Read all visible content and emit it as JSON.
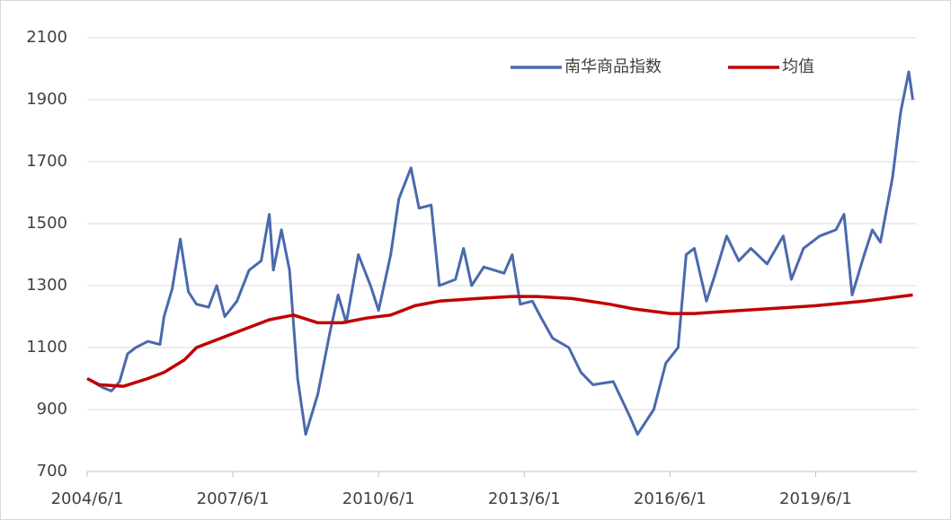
{
  "chart_data": {
    "type": "line",
    "xlim": [
      "2004/6/1",
      "2021/7/1"
    ],
    "xticks": [
      "2004/6/1",
      "2007/6/1",
      "2010/6/1",
      "2013/6/1",
      "2016/6/1",
      "2019/6/1"
    ],
    "ylim": [
      700,
      2100
    ],
    "yticks": [
      700,
      900,
      1100,
      1300,
      1500,
      1700,
      1900,
      2100
    ],
    "grid": true,
    "legend": "top-right",
    "series": [
      {
        "name": "南华商品指数",
        "color": "#4a69ad",
        "x": [
          "2004/6/1",
          "2004/8/1",
          "2004/10/1",
          "2004/12/1",
          "2005/2/1",
          "2005/4/1",
          "2005/6/1",
          "2005/9/1",
          "2005/12/1",
          "2006/1/1",
          "2006/3/1",
          "2006/5/1",
          "2006/7/1",
          "2006/9/1",
          "2006/12/1",
          "2007/2/1",
          "2007/4/1",
          "2007/7/1",
          "2007/10/1",
          "2008/1/1",
          "2008/3/1",
          "2008/4/1",
          "2008/6/1",
          "2008/8/1",
          "2008/10/1",
          "2008/12/1",
          "2009/3/1",
          "2009/6/1",
          "2009/8/1",
          "2009/10/1",
          "2010/1/1",
          "2010/4/1",
          "2010/6/1",
          "2010/9/1",
          "2010/11/1",
          "2011/2/1",
          "2011/4/1",
          "2011/7/1",
          "2011/9/1",
          "2012/1/1",
          "2012/3/1",
          "2012/5/1",
          "2012/8/1",
          "2013/1/1",
          "2013/3/1",
          "2013/5/1",
          "2013/8/1",
          "2013/10/1",
          "2014/1/1",
          "2014/5/1",
          "2014/8/1",
          "2014/11/1",
          "2015/4/1",
          "2015/8/1",
          "2015/10/1",
          "2016/2/1",
          "2016/5/1",
          "2016/8/1",
          "2016/10/1",
          "2016/12/1",
          "2017/3/1",
          "2017/5/1",
          "2017/8/1",
          "2017/11/1",
          "2018/2/1",
          "2018/6/1",
          "2018/10/1",
          "2018/12/1",
          "2019/3/1",
          "2019/7/1",
          "2019/11/1",
          "2020/1/1",
          "2020/3/1",
          "2020/6/1",
          "2020/8/1",
          "2020/10/1",
          "2021/1/1",
          "2021/3/1",
          "2021/5/1",
          "2021/6/1"
        ],
        "values": [
          1000,
          985,
          970,
          960,
          990,
          1080,
          1100,
          1120,
          1110,
          1200,
          1290,
          1450,
          1280,
          1240,
          1230,
          1300,
          1200,
          1250,
          1350,
          1380,
          1530,
          1350,
          1480,
          1350,
          1000,
          820,
          950,
          1150,
          1270,
          1180,
          1400,
          1300,
          1220,
          1400,
          1580,
          1680,
          1550,
          1560,
          1300,
          1320,
          1420,
          1300,
          1360,
          1340,
          1400,
          1240,
          1250,
          1200,
          1130,
          1100,
          1020,
          980,
          990,
          880,
          820,
          900,
          1050,
          1100,
          1400,
          1420,
          1250,
          1330,
          1460,
          1380,
          1420,
          1370,
          1460,
          1320,
          1420,
          1460,
          1480,
          1530,
          1270,
          1400,
          1480,
          1440,
          1650,
          1860,
          1990,
          1900
        ]
      },
      {
        "name": "均值",
        "color": "#c00000",
        "x": [
          "2004/6/1",
          "2004/9/1",
          "2005/3/1",
          "2005/9/1",
          "2006/1/1",
          "2006/6/1",
          "2006/9/1",
          "2007/3/1",
          "2007/9/1",
          "2008/3/1",
          "2008/9/1",
          "2009/3/1",
          "2009/9/1",
          "2010/3/1",
          "2010/9/1",
          "2011/3/1",
          "2011/9/1",
          "2012/6/1",
          "2013/3/1",
          "2013/9/1",
          "2014/6/1",
          "2015/3/1",
          "2015/9/1",
          "2016/6/1",
          "2016/12/1",
          "2017/6/1",
          "2018/6/1",
          "2019/6/1",
          "2020/6/1",
          "2021/6/1"
        ],
        "values": [
          1000,
          980,
          975,
          1000,
          1020,
          1060,
          1100,
          1130,
          1160,
          1190,
          1205,
          1180,
          1180,
          1195,
          1205,
          1235,
          1250,
          1258,
          1265,
          1265,
          1258,
          1240,
          1225,
          1210,
          1210,
          1215,
          1225,
          1235,
          1250,
          1270
        ]
      }
    ]
  }
}
